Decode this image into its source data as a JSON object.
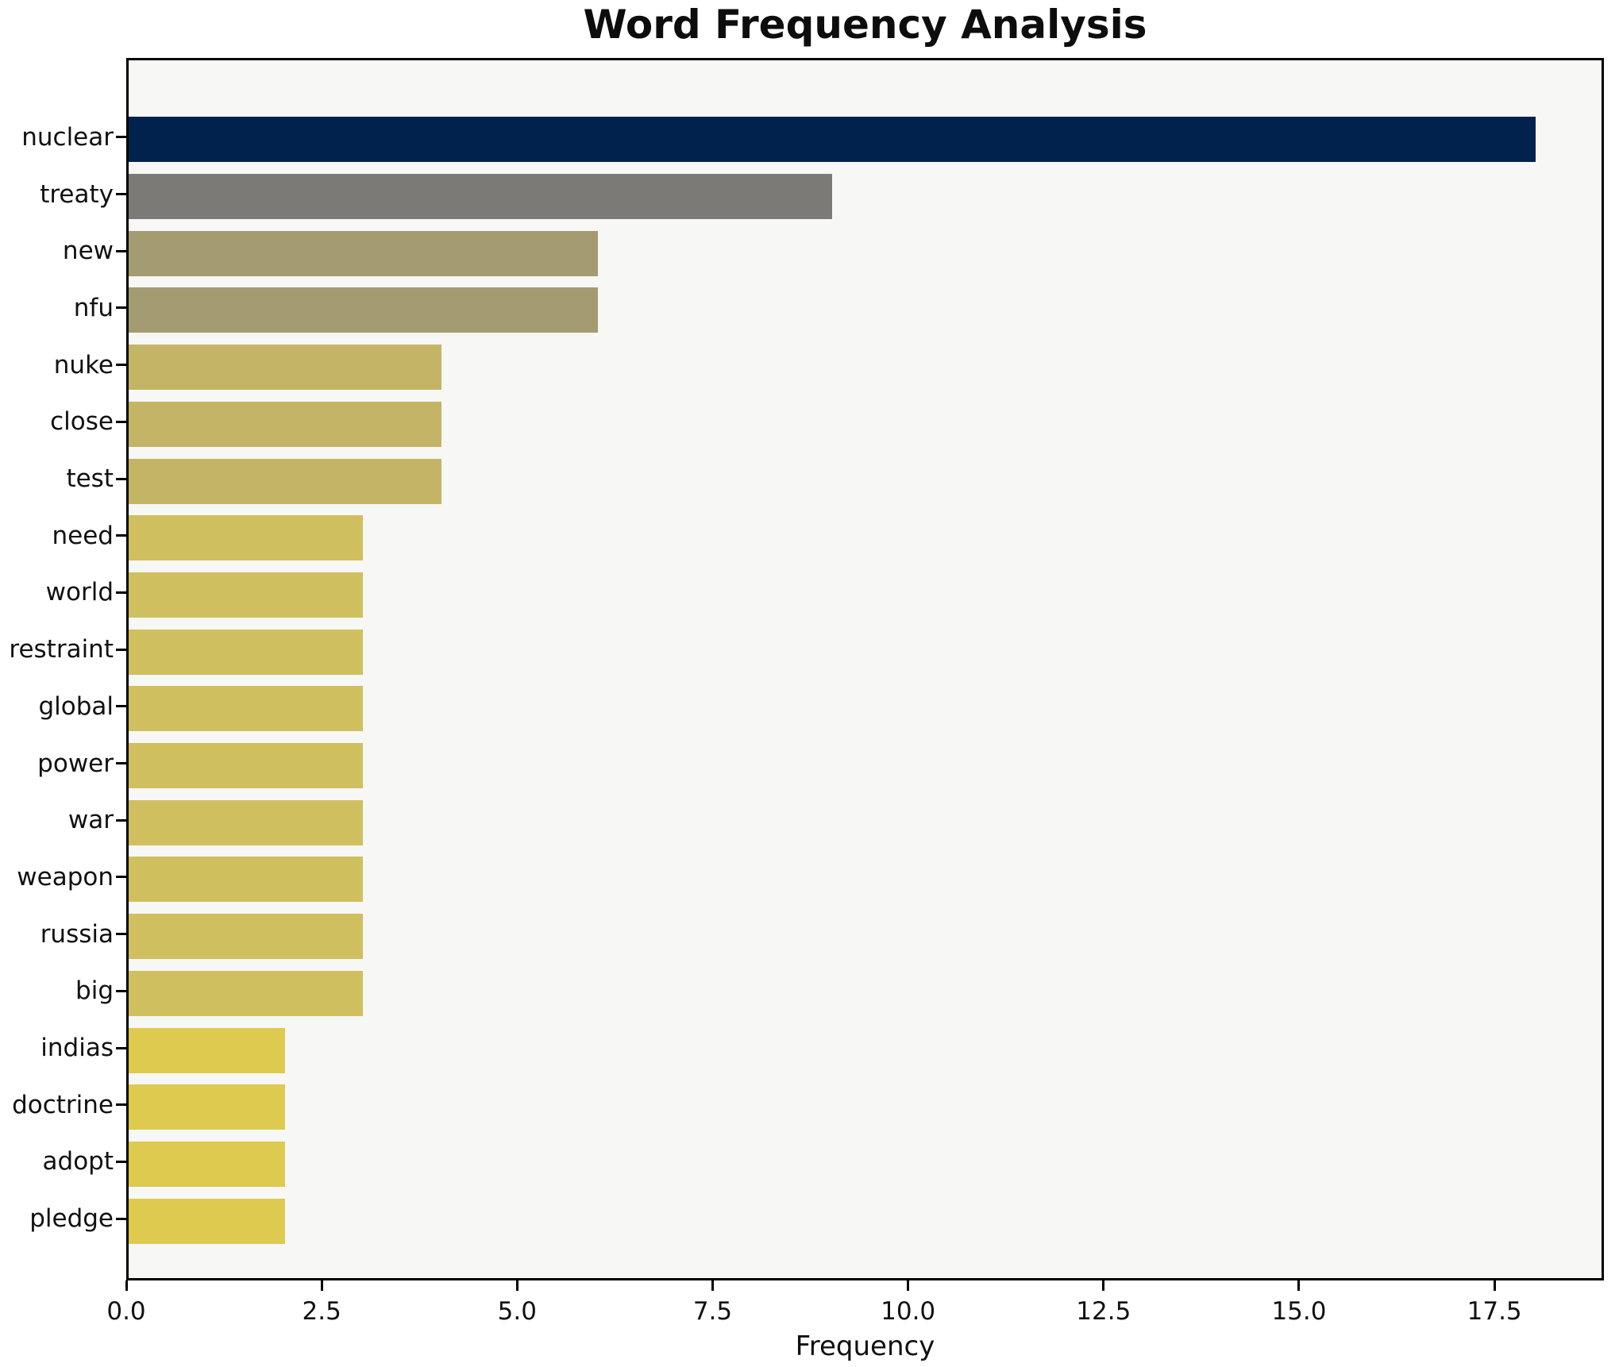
{
  "figure": {
    "background": "#ffffff",
    "plot_background": "#f7f7f5",
    "spine_color": "#000000",
    "text_color": "#111111"
  },
  "chart_data": {
    "type": "bar",
    "orientation": "horizontal",
    "title": "Word Frequency Analysis",
    "xlabel": "Frequency",
    "ylabel": "",
    "categories": [
      "nuclear",
      "treaty",
      "new",
      "nfu",
      "nuke",
      "close",
      "test",
      "need",
      "world",
      "restraint",
      "global",
      "power",
      "war",
      "weapon",
      "russia",
      "big",
      "indias",
      "doctrine",
      "adopt",
      "pledge"
    ],
    "values": [
      18,
      9,
      6,
      6,
      4,
      4,
      4,
      3,
      3,
      3,
      3,
      3,
      3,
      3,
      3,
      3,
      2,
      2,
      2,
      2
    ],
    "bar_colors": [
      "#01224d",
      "#7b7a77",
      "#a49b71",
      "#a49b71",
      "#c4b466",
      "#c4b466",
      "#c4b466",
      "#d0bf5e",
      "#d0bf5e",
      "#d0bf5e",
      "#d0bf5e",
      "#d0bf5e",
      "#d0bf5e",
      "#d0bf5e",
      "#d0bf5e",
      "#d0bf5e",
      "#ddca4f",
      "#ddca4f",
      "#ddca4f",
      "#ddca4f"
    ],
    "xlim": [
      0,
      18.9
    ],
    "x_ticks": [
      0.0,
      2.5,
      5.0,
      7.5,
      10.0,
      12.5,
      15.0,
      17.5
    ],
    "x_tick_labels": [
      "0.0",
      "2.5",
      "5.0",
      "7.5",
      "10.0",
      "12.5",
      "15.0",
      "17.5"
    ],
    "grid": false,
    "legend": null
  }
}
